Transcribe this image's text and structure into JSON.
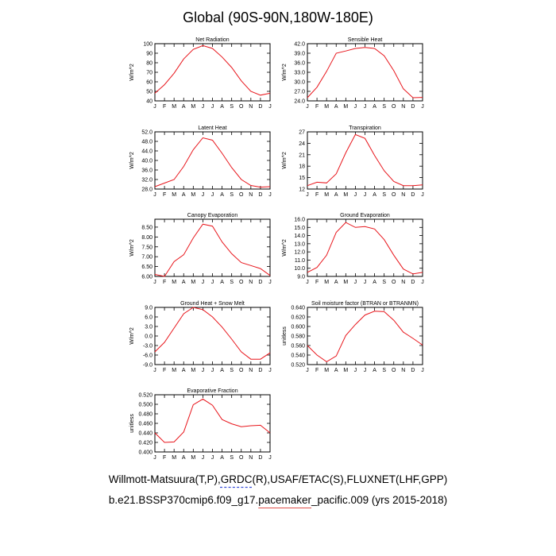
{
  "figure": {
    "title": "Global (90S-90N,180W-180E)",
    "caption_line1_pre": "Willmott-Matsuura(T,P),",
    "caption_line1_grdc": "GRDC",
    "caption_line1_post": "(R),USAF/ETAC(S),FLUXNET(LHF,GPP)",
    "caption_line2_pre": "b.e21.BSSP370cmip6.f09_g17.",
    "caption_line2_pacemaker": "pacemaker",
    "caption_line2_post": "_pacific.009 (yrs 2015-2018)",
    "line_color": "#e8161c",
    "underline_blue": "#3b4fd8",
    "underline_red": "#e0504a"
  },
  "chart_data": [
    {
      "type": "line",
      "title": "Net Radiation",
      "ylabel": "W/m^2",
      "x": [
        "J",
        "F",
        "M",
        "A",
        "M",
        "J",
        "J",
        "A",
        "S",
        "O",
        "N",
        "D",
        "J"
      ],
      "ylim": [
        40,
        100
      ],
      "yticks": [
        "40",
        "50",
        "60",
        "70",
        "80",
        "90",
        "100"
      ],
      "series": [
        {
          "name": "Net Radiation",
          "values": [
            48,
            57,
            69,
            84,
            94,
            98,
            95,
            86,
            75,
            61,
            50,
            46,
            48
          ]
        }
      ]
    },
    {
      "type": "line",
      "title": "Sensible Heat",
      "ylabel": "W/m^2",
      "x": [
        "J",
        "F",
        "M",
        "A",
        "M",
        "J",
        "J",
        "A",
        "S",
        "O",
        "N",
        "D",
        "J"
      ],
      "ylim": [
        24,
        42
      ],
      "yticks": [
        "24.0",
        "27.0",
        "30.0",
        "33.0",
        "36.0",
        "39.0",
        "42.0"
      ],
      "series": [
        {
          "name": "Sensible Heat",
          "values": [
            25.0,
            28.3,
            33.3,
            39.0,
            39.7,
            40.5,
            40.8,
            40.5,
            38.2,
            33.5,
            27.8,
            25.0,
            25.1
          ]
        }
      ]
    },
    {
      "type": "line",
      "title": "Latent Heat",
      "ylabel": "W/m^2",
      "x": [
        "J",
        "F",
        "M",
        "A",
        "M",
        "J",
        "J",
        "A",
        "S",
        "O",
        "N",
        "D",
        "J"
      ],
      "ylim": [
        28,
        52
      ],
      "yticks": [
        "28.0",
        "32.0",
        "36.0",
        "40.0",
        "44.0",
        "48.0",
        "52.0"
      ],
      "series": [
        {
          "name": "Latent Heat",
          "values": [
            29.0,
            30.5,
            32.0,
            37.5,
            44.5,
            49.5,
            48.5,
            43.0,
            37.0,
            32.0,
            29.5,
            28.8,
            29.0
          ]
        }
      ]
    },
    {
      "type": "line",
      "title": "Transpiration",
      "ylabel": "W/m^2",
      "x": [
        "J",
        "F",
        "M",
        "A",
        "M",
        "J",
        "J",
        "A",
        "S",
        "O",
        "N",
        "D",
        "J"
      ],
      "ylim": [
        12,
        27
      ],
      "yticks": [
        "12",
        "15",
        "18",
        "21",
        "24",
        "27"
      ],
      "series": [
        {
          "name": "Transpiration",
          "values": [
            12.9,
            13.8,
            13.6,
            16.0,
            21.5,
            26.3,
            25.3,
            20.8,
            16.8,
            14.0,
            12.9,
            12.9,
            13.1
          ]
        }
      ]
    },
    {
      "type": "line",
      "title": "Canopy Evaporation",
      "ylabel": "W/m^2",
      "x": [
        "J",
        "F",
        "M",
        "A",
        "M",
        "J",
        "J",
        "A",
        "S",
        "O",
        "N",
        "D",
        "J"
      ],
      "ylim": [
        6.0,
        8.9
      ],
      "yticks": [
        "6.00",
        "6.50",
        "7.00",
        "7.50",
        "8.00",
        "8.50"
      ],
      "series": [
        {
          "name": "Canopy Evaporation",
          "values": [
            6.1,
            6.0,
            6.75,
            7.1,
            7.95,
            8.65,
            8.55,
            7.75,
            7.15,
            6.7,
            6.55,
            6.4,
            6.05
          ]
        }
      ]
    },
    {
      "type": "line",
      "title": "Ground Evaporation",
      "ylabel": "W/m^2",
      "x": [
        "J",
        "F",
        "M",
        "A",
        "M",
        "J",
        "J",
        "A",
        "S",
        "O",
        "N",
        "D",
        "J"
      ],
      "ylim": [
        9.0,
        16.0
      ],
      "yticks": [
        "9.0",
        "10.0",
        "11.0",
        "12.0",
        "13.0",
        "14.0",
        "15.0",
        "16.0"
      ],
      "series": [
        {
          "name": "Ground Evaporation",
          "values": [
            9.5,
            10.1,
            11.6,
            14.4,
            15.6,
            15.0,
            15.1,
            14.8,
            13.5,
            11.6,
            9.9,
            9.3,
            9.5
          ]
        }
      ]
    },
    {
      "type": "line",
      "title": "Ground Heat + Snow Melt",
      "ylabel": "W/m^2",
      "x": [
        "J",
        "F",
        "M",
        "A",
        "M",
        "J",
        "J",
        "A",
        "S",
        "O",
        "N",
        "D",
        "J"
      ],
      "ylim": [
        -9.0,
        9.0
      ],
      "yticks": [
        "-9.0",
        "-6.0",
        "-3.0",
        "0.0",
        "3.0",
        "6.0",
        "9.0"
      ],
      "series": [
        {
          "name": "Ground Heat + Snow Melt",
          "values": [
            -5.0,
            -2.0,
            2.5,
            7.0,
            9.0,
            8.3,
            6.0,
            2.8,
            -1.0,
            -5.0,
            -7.3,
            -7.3,
            -5.3
          ]
        }
      ]
    },
    {
      "type": "line",
      "title": "Soil moisture factor (BTRAN or BTRANMN)",
      "ylabel": "unitless",
      "x": [
        "J",
        "F",
        "M",
        "A",
        "M",
        "J",
        "J",
        "A",
        "S",
        "O",
        "N",
        "D",
        "J"
      ],
      "ylim": [
        0.52,
        0.64
      ],
      "yticks": [
        "0.520",
        "0.540",
        "0.560",
        "0.580",
        "0.600",
        "0.620",
        "0.640"
      ],
      "series": [
        {
          "name": "Soil moisture factor",
          "values": [
            0.56,
            0.54,
            0.526,
            0.538,
            0.581,
            0.604,
            0.624,
            0.632,
            0.631,
            0.613,
            0.588,
            0.575,
            0.561
          ]
        }
      ]
    },
    {
      "type": "line",
      "title": "Evaporative Fraction",
      "ylabel": "unitless",
      "x": [
        "J",
        "F",
        "M",
        "A",
        "M",
        "J",
        "J",
        "A",
        "S",
        "O",
        "N",
        "D",
        "J"
      ],
      "ylim": [
        0.4,
        0.52
      ],
      "yticks": [
        "0.400",
        "0.420",
        "0.440",
        "0.460",
        "0.480",
        "0.500",
        "0.520"
      ],
      "series": [
        {
          "name": "Evaporative Fraction",
          "values": [
            0.44,
            0.42,
            0.421,
            0.442,
            0.499,
            0.511,
            0.498,
            0.468,
            0.459,
            0.453,
            0.455,
            0.456,
            0.44
          ]
        }
      ]
    }
  ]
}
